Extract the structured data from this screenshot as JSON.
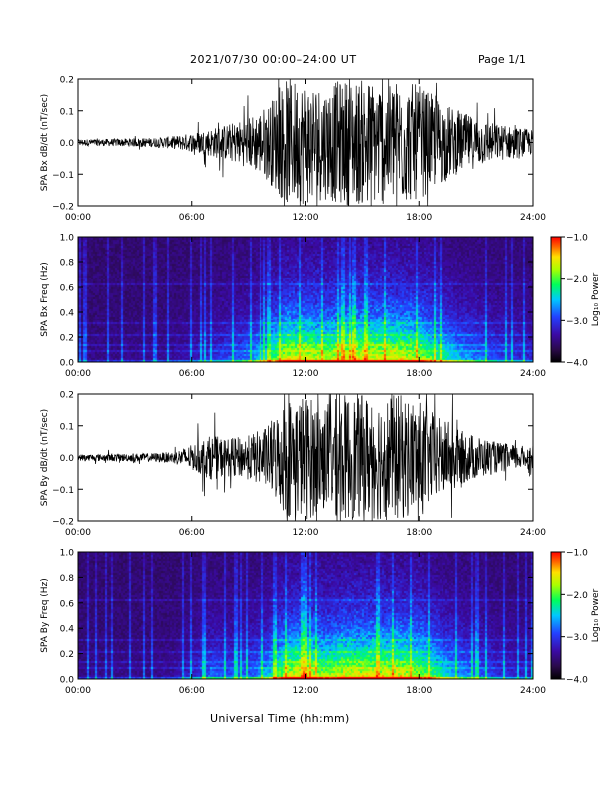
{
  "header": {
    "title": "2021/07/30  00:00–24:00 UT",
    "page": "Page 1/1"
  },
  "x_axis_title": "Universal Time (hh:mm)",
  "colors": {
    "trace": "#000000",
    "colormap": [
      "#000000",
      "#2a0a4a",
      "#3b0aa5",
      "#2340ff",
      "#00c8ff",
      "#00ff5a",
      "#aaff00",
      "#ffe000",
      "#ff6a00",
      "#ff0000"
    ]
  },
  "chart_data": [
    {
      "type": "line",
      "name": "bx",
      "ylabel": "SPA Bx dB/dt (nT/sec)",
      "ylim": [
        -0.2,
        0.2
      ],
      "yticks": [
        "0.2",
        "0.1",
        "0.0",
        "−0.1",
        "−0.2"
      ],
      "ytick_values": [
        0.2,
        0.1,
        0.0,
        -0.1,
        -0.2
      ],
      "xlim": [
        0,
        24
      ],
      "xticks": [
        "00:00",
        "06:00",
        "12:00",
        "18:00",
        "24:00"
      ],
      "envelope": {
        "hours": [
          0,
          2,
          4,
          5,
          6,
          7,
          8,
          9,
          10,
          11,
          12,
          13,
          14,
          15,
          16,
          17,
          18,
          19,
          20,
          21,
          22,
          23,
          24
        ],
        "amplitude": [
          0.01,
          0.012,
          0.015,
          0.02,
          0.03,
          0.045,
          0.06,
          0.08,
          0.12,
          0.2,
          0.2,
          0.18,
          0.2,
          0.2,
          0.2,
          0.2,
          0.18,
          0.14,
          0.1,
          0.08,
          0.06,
          0.05,
          0.04
        ]
      }
    },
    {
      "type": "heatmap",
      "name": "bx-spectrogram",
      "ylabel": "SPA Bx Freq (Hz)",
      "ylim": [
        0.0,
        1.0
      ],
      "yticks": [
        "1.0",
        "0.8",
        "0.6",
        "0.4",
        "0.2",
        "0.0"
      ],
      "ytick_values": [
        1.0,
        0.8,
        0.6,
        0.4,
        0.2,
        0.0
      ],
      "xlim": [
        0,
        24
      ],
      "xticks": [
        "00:00",
        "06:00",
        "12:00",
        "18:00",
        "24:00"
      ],
      "colorbar": {
        "label": "Log₁₀ Power",
        "range": [
          -4.0,
          -1.0
        ],
        "ticks": [
          "−1.0",
          "−2.0",
          "−3.0",
          "−4.0"
        ],
        "tick_values": [
          -1.0,
          -2.0,
          -3.0,
          -4.0
        ]
      }
    },
    {
      "type": "line",
      "name": "by",
      "ylabel": "SPA By dB/dt (nT/sec)",
      "ylim": [
        -0.2,
        0.2
      ],
      "yticks": [
        "0.2",
        "0.1",
        "0.0",
        "−0.1",
        "−0.2"
      ],
      "ytick_values": [
        0.2,
        0.1,
        0.0,
        -0.1,
        -0.2
      ],
      "xlim": [
        0,
        24
      ],
      "xticks": [
        "00:00",
        "06:00",
        "12:00",
        "18:00",
        "24:00"
      ],
      "envelope": {
        "hours": [
          0,
          2,
          4,
          5,
          6,
          7,
          8,
          9,
          10,
          11,
          12,
          13,
          14,
          15,
          16,
          17,
          18,
          19,
          20,
          21,
          22,
          23,
          24
        ],
        "amplitude": [
          0.01,
          0.012,
          0.014,
          0.018,
          0.04,
          0.07,
          0.06,
          0.07,
          0.1,
          0.19,
          0.2,
          0.17,
          0.2,
          0.2,
          0.2,
          0.2,
          0.18,
          0.13,
          0.09,
          0.07,
          0.05,
          0.04,
          0.035
        ]
      }
    },
    {
      "type": "heatmap",
      "name": "by-spectrogram",
      "ylabel": "SPA By Freq (Hz)",
      "ylim": [
        0.0,
        1.0
      ],
      "yticks": [
        "1.0",
        "0.8",
        "0.6",
        "0.4",
        "0.2",
        "0.0"
      ],
      "ytick_values": [
        1.0,
        0.8,
        0.6,
        0.4,
        0.2,
        0.0
      ],
      "xlim": [
        0,
        24
      ],
      "xticks": [
        "00:00",
        "06:00",
        "12:00",
        "18:00",
        "24:00"
      ],
      "colorbar": {
        "label": "Log₁₀ Power",
        "range": [
          -4.0,
          -1.0
        ],
        "ticks": [
          "−1.0",
          "−2.0",
          "−3.0",
          "−4.0"
        ],
        "tick_values": [
          -1.0,
          -2.0,
          -3.0,
          -4.0
        ]
      }
    }
  ]
}
